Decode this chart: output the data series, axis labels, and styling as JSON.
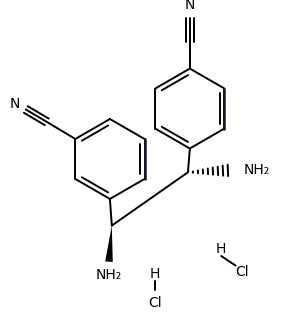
{
  "background_color": "#ffffff",
  "line_color": "#000000",
  "dark_line_color": "#1a1a2e",
  "text_color": "#000000",
  "bond_width": 1.4,
  "figsize": [
    2.95,
    3.35
  ],
  "dpi": 100,
  "xlim": [
    0,
    295
  ],
  "ylim": [
    0,
    335
  ]
}
